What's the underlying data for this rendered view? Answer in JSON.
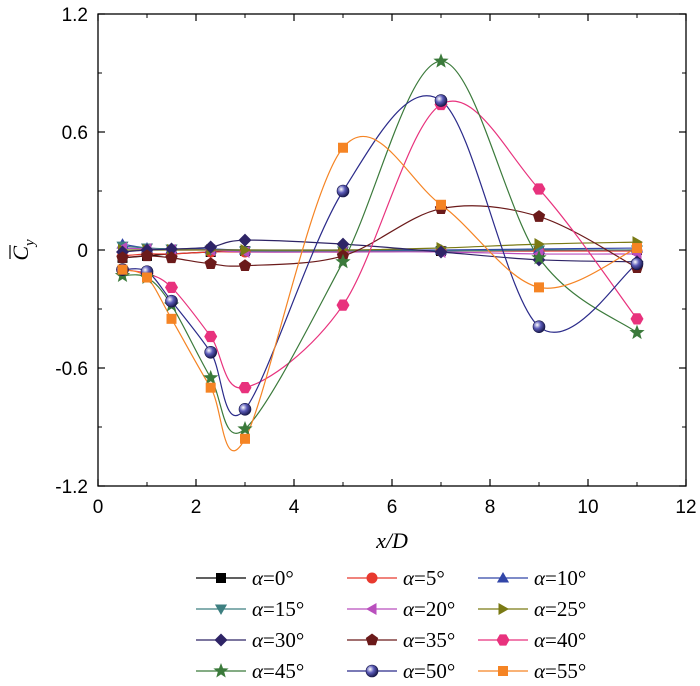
{
  "chart_data": {
    "type": "line",
    "xlabel": "x/D",
    "ylabel": "C_y",
    "xlim": [
      0,
      12
    ],
    "ylim": [
      -1.2,
      1.2
    ],
    "xticks": [
      0,
      2,
      4,
      6,
      8,
      10,
      12
    ],
    "yticks": [
      -1.2,
      -0.6,
      0,
      0.6,
      1.2
    ],
    "xtick_labels": [
      "0",
      "2",
      "4",
      "6",
      "8",
      "10",
      "12"
    ],
    "ytick_labels": [
      "-1.2",
      "-0.6",
      "0",
      "0.6",
      "1.2"
    ],
    "legend_position": "bottom",
    "x": [
      0.5,
      1,
      1.5,
      2.3,
      3,
      5,
      7,
      9,
      11
    ],
    "series": [
      {
        "name": "α=0°",
        "label_var": "α",
        "label_val": "=0°",
        "marker": "square",
        "color": "#000000",
        "values": [
          -0.04,
          -0.03,
          -0.02,
          -0.01,
          -0.005,
          -0.01,
          -0.005,
          -0.005,
          0.0
        ]
      },
      {
        "name": "α=5°",
        "label_var": "α",
        "label_val": "=5°",
        "marker": "circle",
        "color": "#e8392e",
        "values": [
          -0.03,
          -0.02,
          -0.02,
          -0.01,
          -0.01,
          -0.01,
          -0.005,
          -0.005,
          -0.005
        ]
      },
      {
        "name": "α=10°",
        "label_var": "α",
        "label_val": "=10°",
        "marker": "triangle",
        "color": "#3246a8",
        "values": [
          0.03,
          0.01,
          0.005,
          0.005,
          0.0,
          0.0,
          0.0,
          0.005,
          0.01
        ]
      },
      {
        "name": "α=15°",
        "label_var": "α",
        "label_val": "=15°",
        "marker": "tri-down",
        "color": "#3d7f80",
        "values": [
          0.02,
          0.01,
          0.005,
          0.0,
          -0.005,
          -0.005,
          -0.005,
          0.0,
          0.0
        ]
      },
      {
        "name": "α=20°",
        "label_var": "α",
        "label_val": "=20°",
        "marker": "tri-left",
        "color": "#b94fbd",
        "values": [
          0.01,
          0.005,
          0.0,
          0.0,
          -0.01,
          -0.01,
          -0.01,
          -0.02,
          -0.02
        ]
      },
      {
        "name": "α=25°",
        "label_var": "α",
        "label_val": "=25°",
        "marker": "tri-right",
        "color": "#7a7a14",
        "values": [
          0.0,
          0.0,
          0.0,
          0.0,
          0.0,
          0.0,
          0.01,
          0.03,
          0.04
        ]
      },
      {
        "name": "α=30°",
        "label_var": "α",
        "label_val": "=30°",
        "marker": "diamond",
        "color": "#2e2466",
        "values": [
          -0.01,
          0.0,
          0.005,
          0.015,
          0.05,
          0.03,
          -0.01,
          -0.05,
          -0.06
        ]
      },
      {
        "name": "α=35°",
        "label_var": "α",
        "label_val": "=35°",
        "marker": "pentagon",
        "color": "#6b1a1a",
        "values": [
          -0.04,
          -0.03,
          -0.04,
          -0.07,
          -0.08,
          -0.03,
          0.21,
          0.17,
          -0.09
        ]
      },
      {
        "name": "α=40°",
        "label_var": "α",
        "label_val": "=40°",
        "marker": "hexagon",
        "color": "#e8327d",
        "values": [
          -0.1,
          -0.12,
          -0.19,
          -0.44,
          -0.7,
          -0.28,
          0.74,
          0.31,
          -0.35
        ]
      },
      {
        "name": "α=45°",
        "label_var": "α",
        "label_val": "=45°",
        "marker": "star",
        "color": "#3b7a3b",
        "values": [
          -0.13,
          -0.14,
          -0.28,
          -0.65,
          -0.91,
          -0.06,
          0.96,
          -0.04,
          -0.42
        ]
      },
      {
        "name": "α=50°",
        "label_var": "α",
        "label_val": "=50°",
        "marker": "sphere",
        "color": "#2b2b8a",
        "values": [
          -0.1,
          -0.11,
          -0.26,
          -0.52,
          -0.81,
          0.3,
          0.76,
          -0.39,
          -0.07
        ]
      },
      {
        "name": "α=55°",
        "label_var": "α",
        "label_val": "=55°",
        "marker": "square",
        "color": "#f58424",
        "values": [
          -0.1,
          -0.14,
          -0.35,
          -0.7,
          -0.96,
          0.52,
          0.23,
          -0.19,
          0.01
        ]
      }
    ]
  }
}
